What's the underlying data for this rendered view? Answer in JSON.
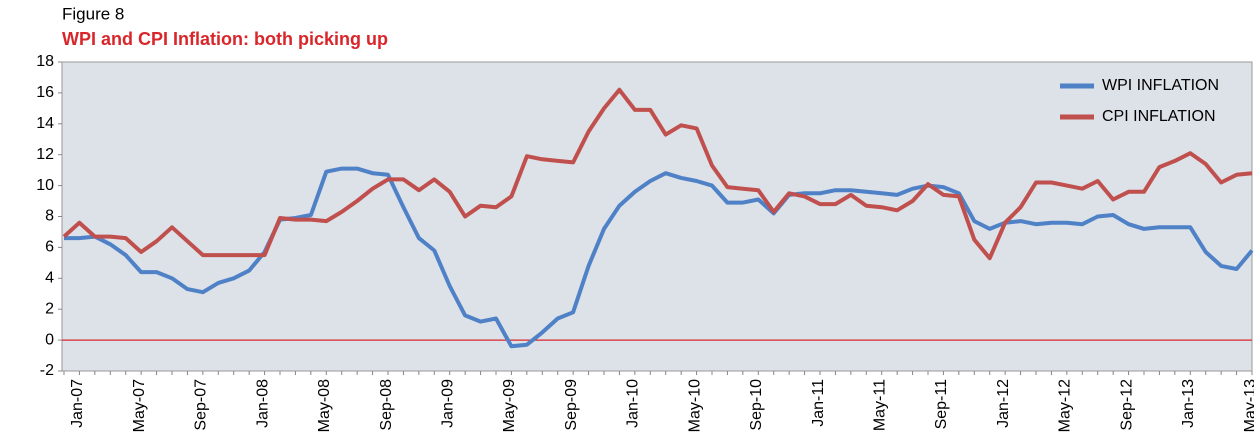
{
  "chart_data": {
    "type": "line",
    "title": "Figure 8",
    "subtitle": "WPI and CPI Inflation: both picking up",
    "categories": [
      "Jan-07",
      null,
      null,
      null,
      "May-07",
      null,
      null,
      null,
      "Sep-07",
      null,
      null,
      null,
      "Jan-08",
      null,
      null,
      null,
      "May-08",
      null,
      null,
      null,
      "Sep-08",
      null,
      null,
      null,
      "Jan-09",
      null,
      null,
      null,
      "May-09",
      null,
      null,
      null,
      "Sep-09",
      null,
      null,
      null,
      "Jan-10",
      null,
      null,
      null,
      "May-10",
      null,
      null,
      null,
      "Sep-10",
      null,
      null,
      null,
      "Jan-11",
      null,
      null,
      null,
      "May-11",
      null,
      null,
      null,
      "Sep-11",
      null,
      null,
      null,
      "Jan-12",
      null,
      null,
      null,
      "May-12",
      null,
      null,
      null,
      "Sep-12",
      null,
      null,
      null,
      "Jan-13",
      null,
      null,
      null,
      "May-13",
      null
    ],
    "series": [
      {
        "name": "WPI INFLATION",
        "color": "#4f81c7",
        "values": [
          6.6,
          6.6,
          6.7,
          6.2,
          5.5,
          4.4,
          4.4,
          4.0,
          3.3,
          3.1,
          3.7,
          4.0,
          4.5,
          5.7,
          7.8,
          7.9,
          8.1,
          10.9,
          11.1,
          11.1,
          10.8,
          10.7,
          8.6,
          6.6,
          5.8,
          3.5,
          1.6,
          1.2,
          1.4,
          -0.4,
          -0.3,
          0.5,
          1.4,
          1.8,
          4.8,
          7.2,
          8.7,
          9.6,
          10.3,
          10.8,
          10.5,
          10.3,
          10.0,
          8.9,
          8.9,
          9.1,
          8.2,
          9.4,
          9.5,
          9.5,
          9.7,
          9.7,
          9.6,
          9.5,
          9.4,
          9.8,
          10.0,
          9.9,
          9.5,
          7.7,
          7.2,
          7.6,
          7.7,
          7.5,
          7.6,
          7.6,
          7.5,
          8.0,
          8.1,
          7.5,
          7.2,
          7.3,
          7.3,
          7.3,
          5.7,
          4.8,
          4.6,
          5.8
        ]
      },
      {
        "name": "CPI INFLATION",
        "color": "#c0504d",
        "values": [
          6.7,
          7.6,
          6.7,
          6.7,
          6.6,
          5.7,
          6.4,
          7.3,
          6.4,
          5.5,
          5.5,
          5.5,
          5.5,
          5.5,
          7.9,
          7.8,
          7.8,
          7.7,
          8.3,
          9.0,
          9.8,
          10.4,
          10.4,
          9.7,
          10.4,
          9.6,
          8.0,
          8.7,
          8.6,
          9.3,
          11.9,
          11.7,
          11.6,
          11.5,
          13.5,
          15.0,
          16.2,
          14.9,
          14.9,
          13.3,
          13.9,
          13.7,
          11.3,
          9.9,
          9.8,
          9.7,
          8.3,
          9.5,
          9.3,
          8.8,
          8.8,
          9.4,
          8.7,
          8.6,
          8.4,
          9.0,
          10.1,
          9.4,
          9.3,
          6.5,
          5.3,
          7.6,
          8.6,
          10.2,
          10.2,
          10.0,
          9.8,
          10.3,
          9.1,
          9.6,
          9.6,
          11.2,
          11.6,
          12.1,
          11.4,
          10.2,
          10.7,
          10.8
        ]
      }
    ],
    "ylim": [
      -2,
      18
    ],
    "yticks": [
      -2,
      0,
      2,
      4,
      6,
      8,
      10,
      12,
      14,
      16,
      18
    ],
    "grid": false,
    "legend": "top-right"
  }
}
